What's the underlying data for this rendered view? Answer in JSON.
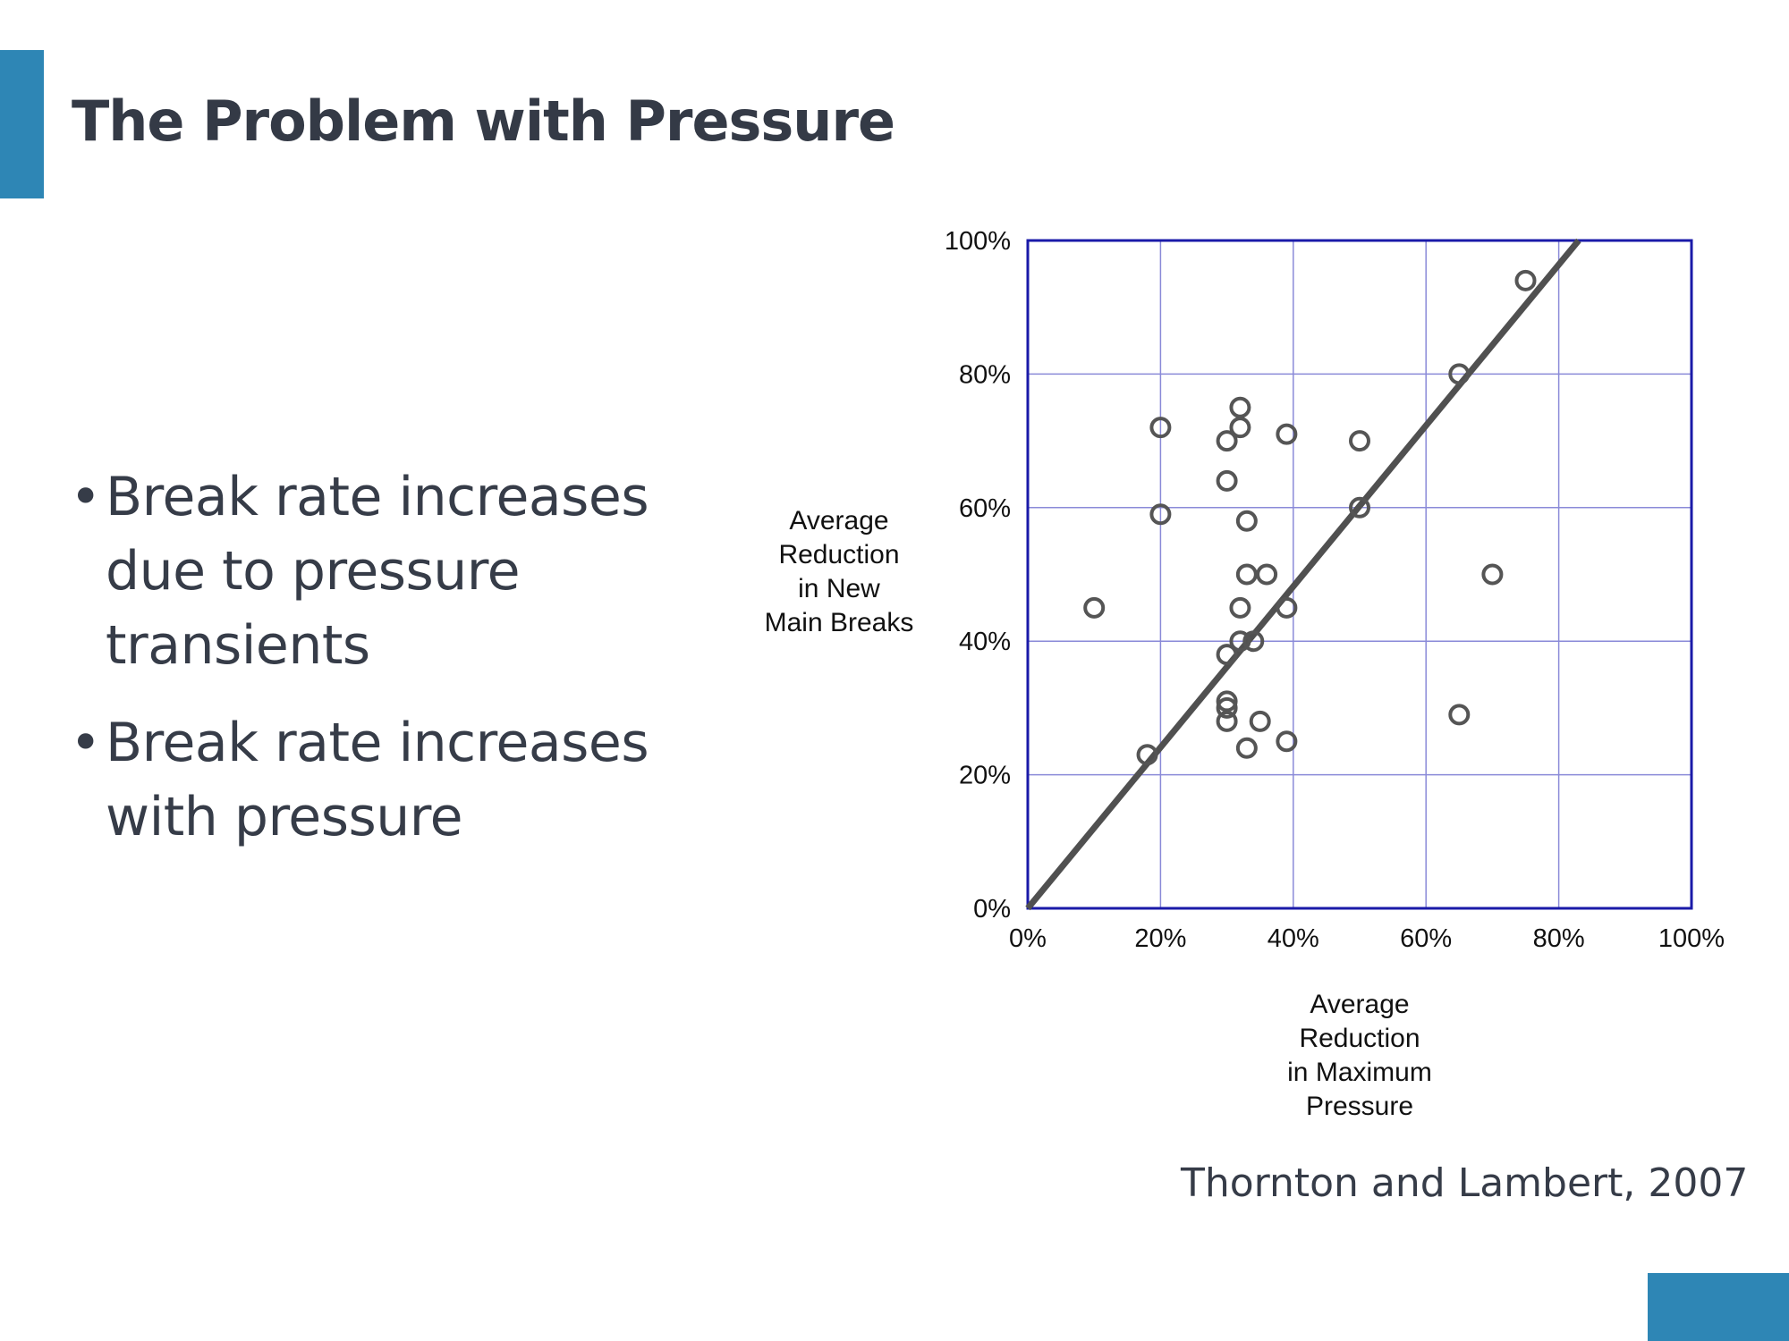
{
  "slide": {
    "title": "The Problem with Pressure",
    "bullets": [
      "Break rate increases due to pressure transients",
      "Break rate increases with pressure"
    ],
    "bullet_glyph": "•",
    "citation": "Thornton and Lambert, 2007"
  },
  "colors": {
    "accent": "#2E86B5",
    "title_text": "#343a46",
    "body_text": "#363c48",
    "chart_frame": "#1a1aa8",
    "chart_grid": "#8a8ad8",
    "markers": "#555555",
    "trend_line": "#505050",
    "chart_text": "#111111"
  },
  "chart_data": {
    "type": "scatter",
    "xlabel": "Average Reduction in Maximum Pressure",
    "ylabel": "Average Reduction in New Main Breaks",
    "xlabel_lines": [
      "Average",
      "Reduction",
      "in Maximum",
      "Pressure"
    ],
    "ylabel_lines": [
      "Average",
      "Reduction",
      "in New",
      "Main Breaks"
    ],
    "xlim": [
      0,
      100
    ],
    "ylim": [
      0,
      100
    ],
    "x_ticks": [
      0,
      20,
      40,
      60,
      80,
      100
    ],
    "y_ticks": [
      0,
      20,
      40,
      60,
      80,
      100
    ],
    "x_tick_labels": [
      "0%",
      "20%",
      "40%",
      "60%",
      "80%",
      "100%"
    ],
    "y_tick_labels": [
      "0%",
      "20%",
      "40%",
      "60%",
      "80%",
      "100%"
    ],
    "grid": true,
    "legend": false,
    "trend_line": {
      "x": [
        0,
        83
      ],
      "y": [
        0,
        100
      ]
    },
    "points": [
      {
        "x": 10,
        "y": 45
      },
      {
        "x": 18,
        "y": 23
      },
      {
        "x": 20,
        "y": 72
      },
      {
        "x": 20,
        "y": 59
      },
      {
        "x": 30,
        "y": 70
      },
      {
        "x": 30,
        "y": 64
      },
      {
        "x": 30,
        "y": 38
      },
      {
        "x": 30,
        "y": 31
      },
      {
        "x": 30,
        "y": 30
      },
      {
        "x": 30,
        "y": 28
      },
      {
        "x": 32,
        "y": 75
      },
      {
        "x": 32,
        "y": 72
      },
      {
        "x": 32,
        "y": 45
      },
      {
        "x": 32,
        "y": 40
      },
      {
        "x": 33,
        "y": 58
      },
      {
        "x": 33,
        "y": 50
      },
      {
        "x": 33,
        "y": 24
      },
      {
        "x": 34,
        "y": 40
      },
      {
        "x": 35,
        "y": 28
      },
      {
        "x": 36,
        "y": 50
      },
      {
        "x": 39,
        "y": 71
      },
      {
        "x": 39,
        "y": 45
      },
      {
        "x": 39,
        "y": 25
      },
      {
        "x": 50,
        "y": 70
      },
      {
        "x": 50,
        "y": 60
      },
      {
        "x": 65,
        "y": 80
      },
      {
        "x": 65,
        "y": 29
      },
      {
        "x": 70,
        "y": 50
      },
      {
        "x": 75,
        "y": 94
      }
    ]
  }
}
